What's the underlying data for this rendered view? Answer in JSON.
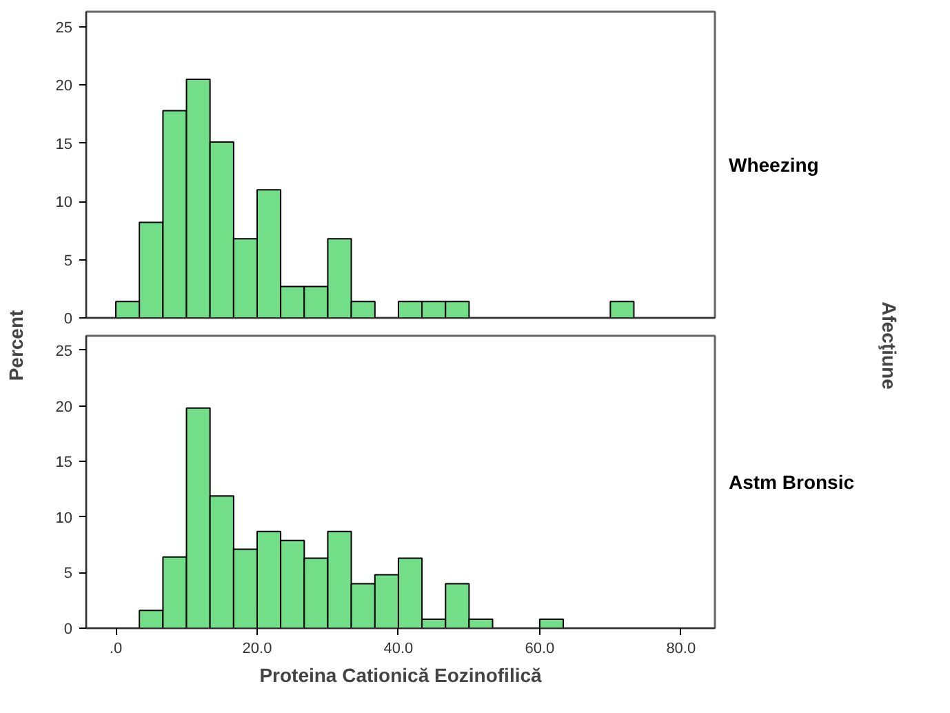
{
  "chart_data": [
    {
      "type": "histogram",
      "annotations": [
        "Wheezing"
      ],
      "ylabel": "Percent",
      "y2label": "Afecţiune",
      "color": "#72df88",
      "bins": [
        0,
        3.33,
        6.67,
        10,
        13.33,
        16.67,
        20,
        23.33,
        26.67,
        30,
        33.33,
        36.67,
        40,
        43.33,
        46.67,
        50,
        53.33,
        56.67,
        60,
        63.33,
        66.67,
        70,
        73.33
      ],
      "values": [
        1.4,
        8.2,
        17.8,
        20.5,
        15.1,
        6.8,
        11.0,
        2.7,
        2.7,
        6.8,
        1.4,
        0,
        1.4,
        1.4,
        1.4,
        0,
        0,
        0,
        0,
        0,
        0,
        1.4
      ],
      "xlim": [
        -4.2,
        84.8
      ],
      "ylim": [
        0,
        26.3
      ],
      "yticks": [
        0,
        5,
        10,
        15,
        20,
        25
      ],
      "tick_labels": "y",
      "grid": false
    },
    {
      "type": "histogram",
      "annotations": [
        "Astm Bronsic"
      ],
      "xlabel": "Proteina Cationică Eozinofilică",
      "color": "#72df88",
      "bins": [
        0,
        3.33,
        6.67,
        10,
        13.33,
        16.67,
        20,
        23.33,
        26.67,
        30,
        33.33,
        36.67,
        40,
        43.33,
        46.67,
        50,
        53.33,
        56.67,
        60,
        63.33
      ],
      "values": [
        0,
        1.6,
        6.4,
        19.8,
        11.9,
        7.1,
        8.7,
        7.9,
        6.3,
        8.7,
        4.0,
        4.8,
        6.3,
        0.8,
        4.0,
        0.8,
        0,
        0,
        0.8
      ],
      "xlim": [
        -4.2,
        84.8
      ],
      "ylim": [
        0,
        26.3
      ],
      "yticks": [
        0,
        5,
        10,
        15,
        20,
        25
      ],
      "xticks": [
        {
          "value": 0,
          "label": ".0"
        },
        {
          "value": 20,
          "label": "20.0"
        },
        {
          "value": 40,
          "label": "40.0"
        },
        {
          "value": 60,
          "label": "60.0"
        },
        {
          "value": 80,
          "label": "80.0"
        }
      ],
      "grid": false
    }
  ]
}
